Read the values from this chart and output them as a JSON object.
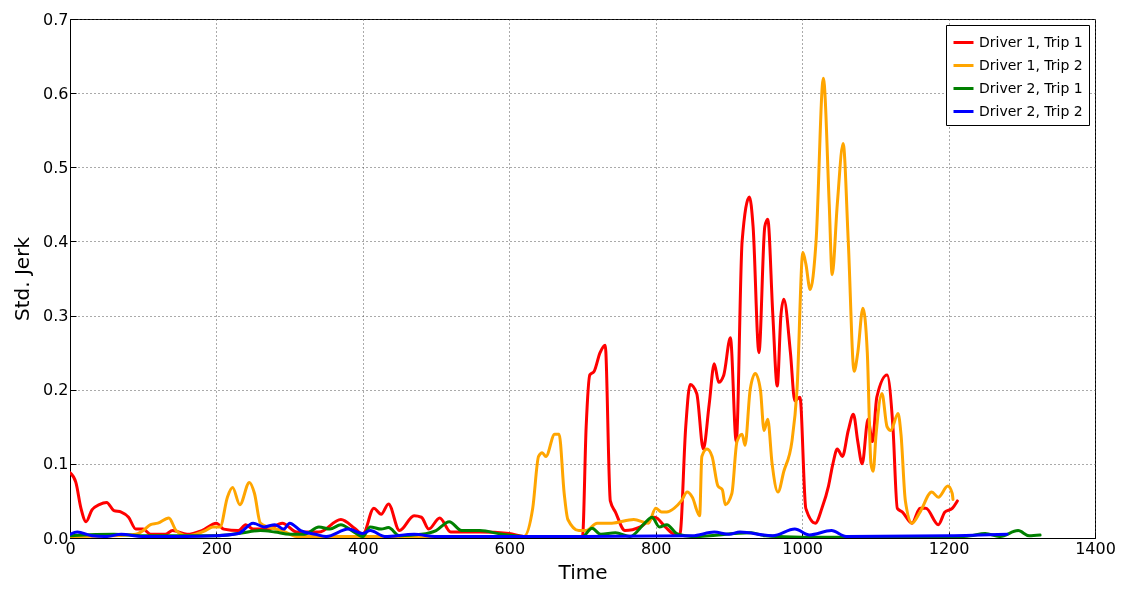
{
  "chart_data": {
    "type": "line",
    "xlabel": "Time",
    "ylabel": "Std. Jerk",
    "xlim": [
      0,
      1400
    ],
    "xticks": [
      0,
      200,
      400,
      600,
      800,
      1000,
      1200,
      1400
    ],
    "ylim": [
      0,
      0.7
    ],
    "yticks": [
      {
        "value": 0,
        "label": "0.0"
      },
      0.1,
      0.2,
      0.3,
      0.4,
      0.5,
      0.6,
      0.7
    ],
    "grid": true,
    "legend": "top right",
    "line_style": "solid",
    "marker": "none",
    "series": [
      {
        "name": "Driver 1, Trip 1",
        "color": "#ff0000",
        "x": [
          0,
          8,
          15,
          22,
          30,
          40,
          50,
          60,
          70,
          80,
          90,
          100,
          110,
          130,
          140,
          160,
          180,
          200,
          210,
          230,
          240,
          250,
          270,
          290,
          310,
          340,
          370,
          390,
          400,
          415,
          425,
          435,
          450,
          470,
          480,
          490,
          505,
          520,
          560,
          600,
          620,
          700,
          705,
          710,
          716,
          724,
          731,
          738,
          745,
          758,
          779,
          799,
          813,
          826,
          833,
          841,
          847,
          856,
          865,
          873,
          880,
          886,
          893,
          902,
          910,
          918,
          928,
          933,
          941,
          949,
          953,
          960,
          966,
          971,
          975,
          984,
          990,
          997,
          1005,
          1018,
          1027,
          1036,
          1042,
          1048,
          1055,
          1063,
          1070,
          1076,
          1082,
          1090,
          1096,
          1102,
          1116,
          1124,
          1130,
          1137,
          1150,
          1161,
          1169,
          1186,
          1195,
          1205,
          1212
        ],
        "values": [
          0.088,
          0.075,
          0.04,
          0.022,
          0.038,
          0.045,
          0.048,
          0.037,
          0.035,
          0.028,
          0.012,
          0.012,
          0.005,
          0.005,
          0.01,
          0.005,
          0.01,
          0.02,
          0.012,
          0.01,
          0.018,
          0.012,
          0.012,
          0.02,
          0.008,
          0.008,
          0.025,
          0.012,
          0.005,
          0.04,
          0.032,
          0.046,
          0.01,
          0.03,
          0.028,
          0.012,
          0.027,
          0.008,
          0.008,
          0.006,
          0.002,
          0.002,
          0.15,
          0.22,
          0.225,
          0.25,
          0.26,
          0.05,
          0.035,
          0.01,
          0.015,
          0.028,
          0.015,
          0.005,
          0.005,
          0.15,
          0.207,
          0.195,
          0.12,
          0.18,
          0.235,
          0.21,
          0.22,
          0.27,
          0.13,
          0.4,
          0.46,
          0.42,
          0.25,
          0.42,
          0.43,
          0.3,
          0.205,
          0.3,
          0.322,
          0.25,
          0.185,
          0.19,
          0.04,
          0.02,
          0.04,
          0.07,
          0.1,
          0.12,
          0.11,
          0.145,
          0.167,
          0.13,
          0.1,
          0.16,
          0.13,
          0.19,
          0.22,
          0.15,
          0.04,
          0.035,
          0.02,
          0.04,
          0.04,
          0.018,
          0.035,
          0.04,
          0.05
        ]
      },
      {
        "name": "Driver 1, Trip 2",
        "color": "#ffa500",
        "x": [
          0,
          60,
          90,
          100,
          110,
          120,
          135,
          145,
          160,
          185,
          195,
          205,
          215,
          222,
          232,
          245,
          252,
          260,
          270,
          290,
          310,
          620,
          632,
          640,
          645,
          650,
          662,
          668,
          675,
          680,
          695,
          705,
          720,
          740,
          770,
          790,
          800,
          808,
          815,
          825,
          835,
          843,
          850,
          860,
          863,
          870,
          877,
          885,
          891,
          895,
          904,
          911,
          918,
          922,
          929,
          936,
          943,
          948,
          953,
          959,
          967,
          975,
          986,
          993,
          1001,
          1005,
          1011,
          1019,
          1029,
          1037,
          1041,
          1048,
          1056,
          1063,
          1071,
          1076,
          1083,
          1089,
          1094,
          1097,
          1101,
          1109,
          1116,
          1121,
          1131,
          1135,
          1141,
          1150,
          1161,
          1177,
          1186,
          1199,
          1205,
          1206
        ],
        "values": [
          0.002,
          0.003,
          0.005,
          0.01,
          0.018,
          0.02,
          0.027,
          0.01,
          0.003,
          0.01,
          0.015,
          0.015,
          0.055,
          0.068,
          0.045,
          0.075,
          0.06,
          0.02,
          0.015,
          0.01,
          0.002,
          0.002,
          0.04,
          0.11,
          0.115,
          0.11,
          0.14,
          0.14,
          0.06,
          0.025,
          0.01,
          0.01,
          0.02,
          0.02,
          0.025,
          0.02,
          0.04,
          0.035,
          0.035,
          0.04,
          0.05,
          0.062,
          0.055,
          0.03,
          0.11,
          0.12,
          0.11,
          0.07,
          0.065,
          0.045,
          0.06,
          0.13,
          0.14,
          0.125,
          0.2,
          0.222,
          0.2,
          0.145,
          0.16,
          0.1,
          0.062,
          0.09,
          0.13,
          0.2,
          0.385,
          0.37,
          0.335,
          0.4,
          0.62,
          0.45,
          0.355,
          0.45,
          0.532,
          0.4,
          0.225,
          0.25,
          0.31,
          0.25,
          0.1,
          0.09,
          0.14,
          0.195,
          0.15,
          0.145,
          0.168,
          0.14,
          0.05,
          0.02,
          0.035,
          0.062,
          0.055,
          0.07,
          0.06,
          0.052
        ]
      },
      {
        "name": "Driver 2, Trip 1",
        "color": "#008000",
        "x": [
          0,
          60,
          100,
          200,
          230,
          260,
          280,
          300,
          320,
          340,
          355,
          370,
          385,
          400,
          410,
          425,
          435,
          450,
          480,
          500,
          518,
          535,
          560,
          590,
          620,
          700,
          713,
          725,
          745,
          765,
          785,
          795,
          805,
          815,
          830,
          850,
          930,
          950,
          1000,
          1100,
          1200,
          1230,
          1250,
          1270,
          1295,
          1310,
          1325
        ],
        "values": [
          0.003,
          0.005,
          0.003,
          0.003,
          0.006,
          0.01,
          0.008,
          0.005,
          0.005,
          0.015,
          0.012,
          0.018,
          0.01,
          0.002,
          0.015,
          0.012,
          0.014,
          0.003,
          0.005,
          0.01,
          0.022,
          0.01,
          0.01,
          0.005,
          0.002,
          0.002,
          0.013,
          0.005,
          0.007,
          0.002,
          0.02,
          0.028,
          0.015,
          0.018,
          0.005,
          0.002,
          0.007,
          0.003,
          0.001,
          0.001,
          0.001,
          0.003,
          0.006,
          0.002,
          0.01,
          0.003,
          0.004
        ]
      },
      {
        "name": "Driver 2, Trip 2",
        "color": "#0000ff",
        "x": [
          0,
          10,
          30,
          50,
          70,
          100,
          150,
          200,
          230,
          250,
          265,
          280,
          292,
          300,
          315,
          335,
          350,
          380,
          400,
          410,
          430,
          470,
          500,
          600,
          700,
          850,
          880,
          900,
          915,
          960,
          990,
          1010,
          1040,
          1060,
          1200,
          1280
        ],
        "values": [
          0.005,
          0.008,
          0.003,
          0.002,
          0.005,
          0.002,
          0.002,
          0.003,
          0.006,
          0.02,
          0.015,
          0.018,
          0.012,
          0.02,
          0.01,
          0.005,
          0.002,
          0.012,
          0.006,
          0.01,
          0.002,
          0.005,
          0.002,
          0.002,
          0.002,
          0.003,
          0.008,
          0.005,
          0.008,
          0.003,
          0.012,
          0.004,
          0.01,
          0.002,
          0.003,
          0.005
        ]
      }
    ]
  }
}
